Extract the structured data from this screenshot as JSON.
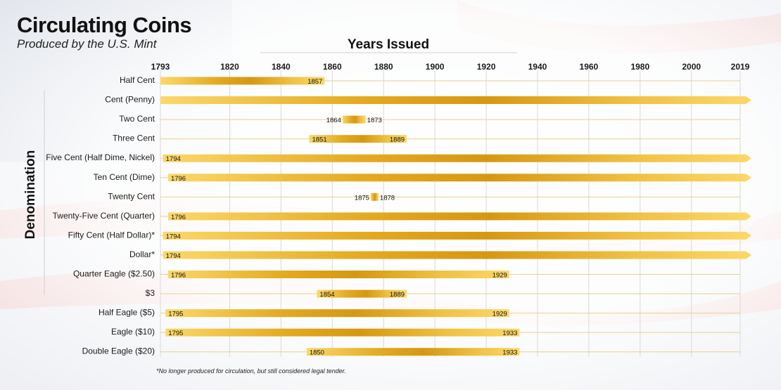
{
  "header": {
    "title": "Circulating Coins",
    "subtitle": "Produced by the U.S. Mint"
  },
  "chart_data": {
    "type": "bar",
    "subtype": "horizontal-range-timeline",
    "title": "Circulating Coins",
    "subtitle": "Produced by the U.S. Mint",
    "xlabel": "Years Issued",
    "ylabel": "Denomination",
    "xlim": [
      1793,
      2019
    ],
    "x_ticks": [
      1793,
      1820,
      1840,
      1860,
      1880,
      1900,
      1920,
      1940,
      1960,
      1980,
      2000,
      2019
    ],
    "grid": true,
    "footnote": "*No longer produced for circulation, but still considered legal tender.",
    "colors": {
      "bar_light": "#fbd86a",
      "bar_dark": "#d89a12",
      "gridline": "#e8d28a",
      "text": "#1a1a1a"
    },
    "series": [
      {
        "name": "Half Cent",
        "start": 1793,
        "end": 1857,
        "start_label": "",
        "end_label": "1857",
        "ongoing": false
      },
      {
        "name": "Cent (Penny)",
        "start": 1793,
        "end": 2019,
        "start_label": "",
        "end_label": "",
        "ongoing": true
      },
      {
        "name": "Two Cent",
        "start": 1864,
        "end": 1873,
        "start_label": "1864",
        "end_label": "1873",
        "ongoing": false
      },
      {
        "name": "Three Cent",
        "start": 1851,
        "end": 1889,
        "start_label": "1851",
        "end_label": "1889",
        "ongoing": false
      },
      {
        "name": "Five Cent (Half Dime, Nickel)",
        "start": 1794,
        "end": 2019,
        "start_label": "1794",
        "end_label": "",
        "ongoing": true
      },
      {
        "name": "Ten Cent (Dime)",
        "start": 1796,
        "end": 2019,
        "start_label": "1796",
        "end_label": "",
        "ongoing": true
      },
      {
        "name": "Twenty Cent",
        "start": 1875,
        "end": 1878,
        "start_label": "1875",
        "end_label": "1878",
        "ongoing": false
      },
      {
        "name": "Twenty-Five Cent (Quarter)",
        "start": 1796,
        "end": 2019,
        "start_label": "1796",
        "end_label": "",
        "ongoing": true
      },
      {
        "name": "Fifty Cent (Half Dollar)*",
        "start": 1794,
        "end": 2019,
        "start_label": "1794",
        "end_label": "",
        "ongoing": true
      },
      {
        "name": "Dollar*",
        "start": 1794,
        "end": 2019,
        "start_label": "1794",
        "end_label": "",
        "ongoing": true
      },
      {
        "name": "Quarter Eagle ($2.50)",
        "start": 1796,
        "end": 1929,
        "start_label": "1796",
        "end_label": "1929",
        "ongoing": false
      },
      {
        "name": "$3",
        "start": 1854,
        "end": 1889,
        "start_label": "1854",
        "end_label": "1889",
        "ongoing": false
      },
      {
        "name": "Half Eagle ($5)",
        "start": 1795,
        "end": 1929,
        "start_label": "1795",
        "end_label": "1929",
        "ongoing": false
      },
      {
        "name": "Eagle ($10)",
        "start": 1795,
        "end": 1933,
        "start_label": "1795",
        "end_label": "1933",
        "ongoing": false
      },
      {
        "name": "Double Eagle ($20)",
        "start": 1850,
        "end": 1933,
        "start_label": "1850",
        "end_label": "1933",
        "ongoing": false
      }
    ]
  }
}
